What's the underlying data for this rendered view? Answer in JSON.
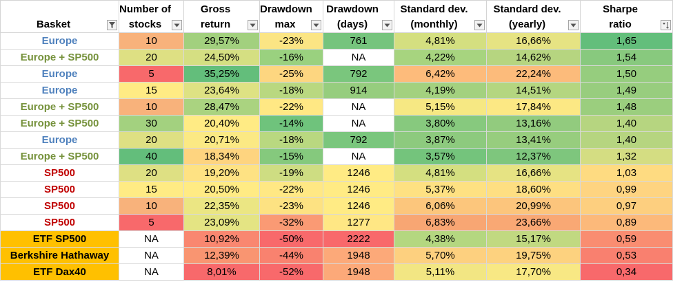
{
  "header": {
    "basket": "Basket",
    "stocks": [
      "Number of",
      "stocks"
    ],
    "gross": [
      "Gross",
      "return"
    ],
    "ddmax": [
      "Drawdown",
      "max"
    ],
    "dddays": [
      "Drawdown",
      "(days)"
    ],
    "sdm": [
      "Standard dev.",
      "(monthly)"
    ],
    "sdy": [
      "Standard dev.",
      "(yearly)"
    ],
    "sharpe": [
      "Sharpe",
      "ratio"
    ]
  },
  "filter_icons": {
    "basket": "funnel-filter-icon",
    "sharpe": "sort-descending-icon",
    "default": "dropdown-arrow-icon"
  },
  "colors": {
    "europe": "#4f81bd",
    "europe_sp500": "#76923c",
    "sp500": "#c00000",
    "etf_bg": "#ffc000"
  },
  "rows": [
    {
      "basket": "Europe",
      "type": "europe",
      "stocks": "10",
      "stocks_bg": "#f8b27b",
      "gross": "29,57%",
      "gross_bg": "#a2d07e",
      "ddmax": "-23%",
      "ddmax_bg": "#fbe584",
      "dddays": "761",
      "dddays_bg": "#76c47d",
      "sdm": "4,81%",
      "sdm_bg": "#d4df80",
      "sdy": "16,66%",
      "sdy_bg": "#e6e383",
      "sharpe": "1,65",
      "sharpe_bg": "#63be7b"
    },
    {
      "basket": "Europe + SP500",
      "type": "europe_sp500",
      "stocks": "20",
      "stocks_bg": "#dee083",
      "gross": "24,50%",
      "gross_bg": "#d5df82",
      "ddmax": "-16%",
      "ddmax_bg": "#9ad17f",
      "dddays": "NA",
      "dddays_bg": "#ffffff",
      "sdm": "4,22%",
      "sdm_bg": "#a7d47f",
      "sdy": "14,62%",
      "sdy_bg": "#b6d580",
      "sharpe": "1,54",
      "sharpe_bg": "#88c97e"
    },
    {
      "basket": "Europe",
      "type": "europe",
      "stocks": "5",
      "stocks_bg": "#f8696b",
      "gross": "35,25%",
      "gross_bg": "#63be7b",
      "ddmax": "-25%",
      "ddmax_bg": "#fdd680",
      "dddays": "792",
      "dddays_bg": "#7ac67d",
      "sdm": "6,42%",
      "sdm_bg": "#fdbb7b",
      "sdy": "22,24%",
      "sdy_bg": "#fcbb7b",
      "sharpe": "1,50",
      "sharpe_bg": "#96cd7e"
    },
    {
      "basket": "Europe",
      "type": "europe",
      "stocks": "15",
      "stocks_bg": "#ffeb84",
      "gross": "23,64%",
      "gross_bg": "#dee283",
      "ddmax": "-18%",
      "ddmax_bg": "#b9d880",
      "dddays": "914",
      "dddays_bg": "#96cd7e",
      "sdm": "4,19%",
      "sdm_bg": "#a3d17f",
      "sdy": "14,51%",
      "sdy_bg": "#b4d680",
      "sharpe": "1,49",
      "sharpe_bg": "#98cd7e"
    },
    {
      "basket": "Europe + SP500",
      "type": "europe_sp500",
      "stocks": "10",
      "stocks_bg": "#f8b27b",
      "gross": "28,47%",
      "gross_bg": "#aad380",
      "ddmax": "-22%",
      "ddmax_bg": "#ffe884",
      "dddays": "NA",
      "dddays_bg": "#ffffff",
      "sdm": "5,15%",
      "sdm_bg": "#f6e883",
      "sdy": "17,84%",
      "sdy_bg": "#fce884",
      "sharpe": "1,48",
      "sharpe_bg": "#9bce7e"
    },
    {
      "basket": "Europe + SP500",
      "type": "europe_sp500",
      "stocks": "30",
      "stocks_bg": "#a3d17f",
      "gross": "20,40%",
      "gross_bg": "#ffeb84",
      "ddmax": "-14%",
      "ddmax_bg": "#6fc37c",
      "dddays": "NA",
      "dddays_bg": "#ffffff",
      "sdm": "3,80%",
      "sdm_bg": "#87c97e",
      "sdy": "13,16%",
      "sdy_bg": "#92cb7e",
      "sharpe": "1,40",
      "sharpe_bg": "#b6d580"
    },
    {
      "basket": "Europe",
      "type": "europe",
      "stocks": "20",
      "stocks_bg": "#dee083",
      "gross": "20,71%",
      "gross_bg": "#fbe984",
      "ddmax": "-18%",
      "ddmax_bg": "#b9d880",
      "dddays": "792",
      "dddays_bg": "#7ac67d",
      "sdm": "3,87%",
      "sdm_bg": "#8dca7e",
      "sdy": "13,41%",
      "sdy_bg": "#97cd7e",
      "sharpe": "1,40",
      "sharpe_bg": "#b6d580"
    },
    {
      "basket": "Europe + SP500",
      "type": "europe_sp500",
      "stocks": "40",
      "stocks_bg": "#63be7b",
      "gross": "18,34%",
      "gross_bg": "#fed47f",
      "ddmax": "-15%",
      "ddmax_bg": "#85c97d",
      "dddays": "NA",
      "dddays_bg": "#ffffff",
      "sdm": "3,57%",
      "sdm_bg": "#74c47c",
      "sdy": "12,37%",
      "sdy_bg": "#7ec67d",
      "sharpe": "1,32",
      "sharpe_bg": "#d4dd82"
    },
    {
      "basket": "SP500",
      "type": "sp500",
      "stocks": "20",
      "stocks_bg": "#dee083",
      "gross": "19,20%",
      "gross_bg": "#fee283",
      "ddmax": "-19%",
      "ddmax_bg": "#cedd82",
      "dddays": "1246",
      "dddays_bg": "#ffeb84",
      "sdm": "4,81%",
      "sdm_bg": "#d4df80",
      "sdy": "16,66%",
      "sdy_bg": "#e6e383",
      "sharpe": "1,03",
      "sharpe_bg": "#fedb81"
    },
    {
      "basket": "SP500",
      "type": "sp500",
      "stocks": "15",
      "stocks_bg": "#ffeb84",
      "gross": "20,50%",
      "gross_bg": "#ffeb84",
      "ddmax": "-22%",
      "ddmax_bg": "#ffe884",
      "dddays": "1246",
      "dddays_bg": "#ffeb84",
      "sdm": "5,37%",
      "sdm_bg": "#fee182",
      "sdy": "18,60%",
      "sdy_bg": "#fedf82",
      "sharpe": "0,99",
      "sharpe_bg": "#fed481"
    },
    {
      "basket": "SP500",
      "type": "sp500",
      "stocks": "10",
      "stocks_bg": "#f8b27b",
      "gross": "22,35%",
      "gross_bg": "#ebe683",
      "ddmax": "-23%",
      "ddmax_bg": "#fde282",
      "dddays": "1246",
      "dddays_bg": "#ffeb84",
      "sdm": "6,06%",
      "sdm_bg": "#fcc67c",
      "sdy": "20,99%",
      "sdy_bg": "#fcc57c",
      "sharpe": "0,97",
      "sharpe_bg": "#fdcf7f"
    },
    {
      "basket": "SP500",
      "type": "sp500",
      "stocks": "5",
      "stocks_bg": "#f8696b",
      "gross": "23,09%",
      "gross_bg": "#e4e483",
      "ddmax": "-32%",
      "ddmax_bg": "#fa9a74",
      "dddays": "1277",
      "dddays_bg": "#ffe784",
      "sdm": "6,83%",
      "sdm_bg": "#f8a673",
      "sdy": "23,66%",
      "sdy_bg": "#f9a874",
      "sharpe": "0,89",
      "sharpe_bg": "#fcb97a"
    },
    {
      "basket": "ETF SP500",
      "type": "etf",
      "stocks": "NA",
      "stocks_bg": "#ffffff",
      "gross": "10,92%",
      "gross_bg": "#f98770",
      "ddmax": "-50%",
      "ddmax_bg": "#f8696b",
      "dddays": "2222",
      "dddays_bg": "#f8696b",
      "sdm": "4,38%",
      "sdm_bg": "#b4d780",
      "sdy": "15,17%",
      "sdy_bg": "#c1d981",
      "sharpe": "0,59",
      "sharpe_bg": "#f98d71"
    },
    {
      "basket": "Berkshire Hathaway",
      "type": "etf",
      "stocks": "NA",
      "stocks_bg": "#ffffff",
      "gross": "12,39%",
      "gross_bg": "#f99571",
      "ddmax": "-44%",
      "ddmax_bg": "#f9826f",
      "dddays": "1948",
      "dddays_bg": "#fca979",
      "sdm": "5,70%",
      "sdm_bg": "#fdd07f",
      "sdy": "19,75%",
      "sdy_bg": "#fdd27f",
      "sharpe": "0,53",
      "sharpe_bg": "#f9806f"
    },
    {
      "basket": "ETF Dax40",
      "type": "etf",
      "stocks": "NA",
      "stocks_bg": "#ffffff",
      "gross": "8,01%",
      "gross_bg": "#f8696b",
      "ddmax": "-52%",
      "ddmax_bg": "#f8696b",
      "dddays": "1948",
      "dddays_bg": "#fca979",
      "sdm": "5,11%",
      "sdm_bg": "#f2e683",
      "sdy": "17,70%",
      "sdy_bg": "#f8e884",
      "sharpe": "0,34",
      "sharpe_bg": "#f8696b"
    }
  ]
}
